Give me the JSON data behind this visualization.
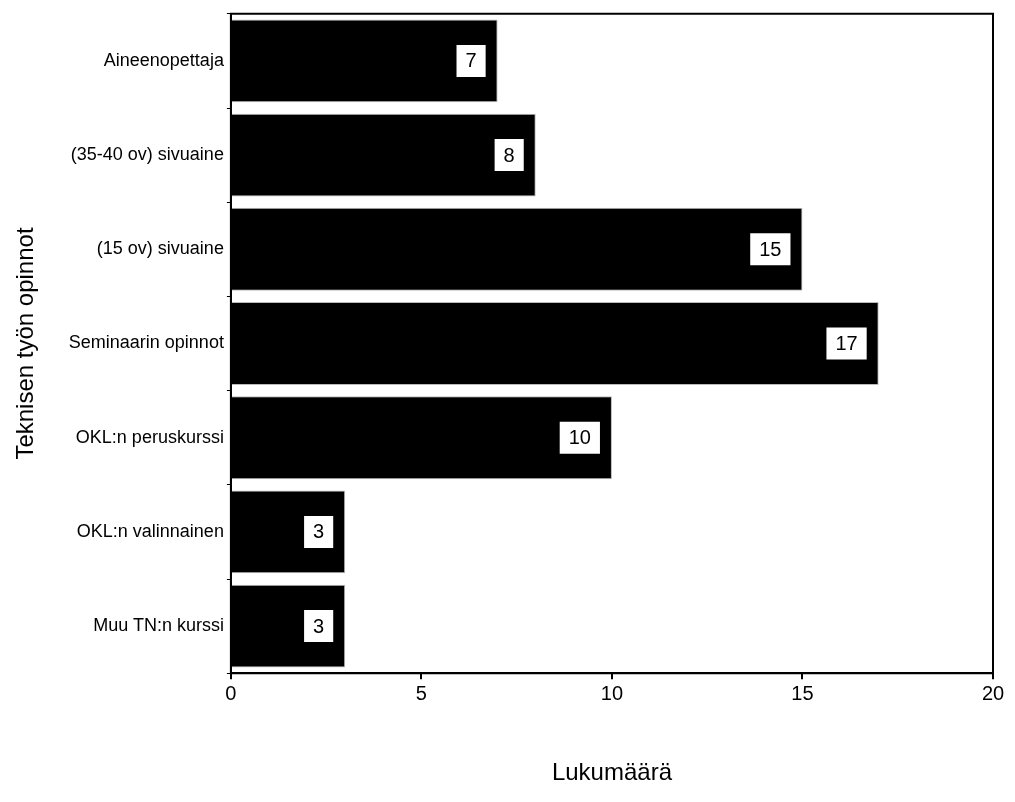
{
  "chart_data": {
    "type": "bar",
    "orientation": "horizontal",
    "categories": [
      "Aineenopettaja",
      "(35-40 ov) sivuaine",
      "(15 ov) sivuaine",
      "Seminaarin opinnot",
      "OKL:n peruskurssi",
      "OKL:n valinnainen",
      "Muu TN:n kurssi"
    ],
    "values": [
      7,
      8,
      15,
      17,
      10,
      3,
      3
    ],
    "color": "#000000",
    "xlim": [
      0,
      20
    ],
    "xticks": [
      0,
      5,
      10,
      15,
      20
    ],
    "xlabel": "Lukumäärä",
    "ylabel": "Teknisen työn opinnot",
    "data_labels": true,
    "grid": false,
    "legend": false
  }
}
